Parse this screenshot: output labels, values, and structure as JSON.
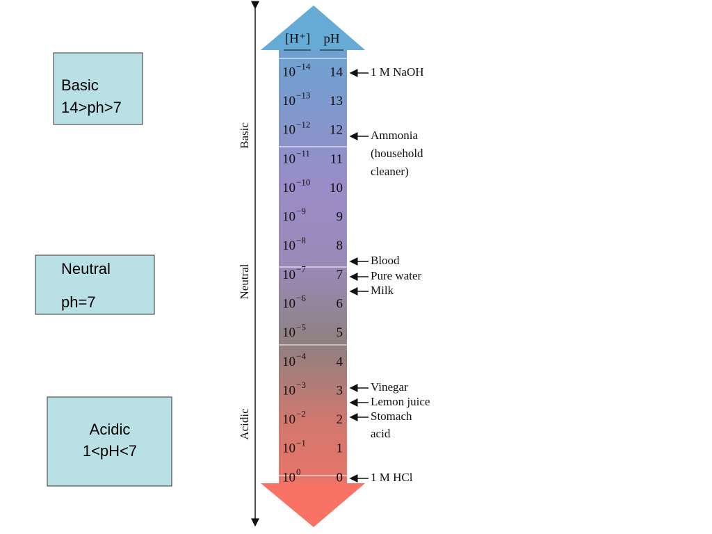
{
  "boxes": [
    {
      "lines": [
        "Basic",
        "14>ph>7"
      ]
    },
    {
      "lines": [
        "Neutral",
        "ph=7"
      ]
    },
    {
      "lines": [
        "Acidic",
        "1<pH<7"
      ]
    }
  ],
  "scale": {
    "header": {
      "concentration": "[H⁺]",
      "ph": "pH"
    },
    "rows": [
      {
        "base": "10",
        "exp": "−14",
        "ph": "14"
      },
      {
        "base": "10",
        "exp": "−13",
        "ph": "13"
      },
      {
        "base": "10",
        "exp": "−12",
        "ph": "12"
      },
      {
        "base": "10",
        "exp": "−11",
        "ph": "11"
      },
      {
        "base": "10",
        "exp": "−10",
        "ph": "10"
      },
      {
        "base": "10",
        "exp": "−9",
        "ph": "9"
      },
      {
        "base": "10",
        "exp": "−8",
        "ph": "8"
      },
      {
        "base": "10",
        "exp": "−7",
        "ph": "7"
      },
      {
        "base": "10",
        "exp": "−6",
        "ph": "6"
      },
      {
        "base": "10",
        "exp": "−5",
        "ph": "5"
      },
      {
        "base": "10",
        "exp": "−4",
        "ph": "4"
      },
      {
        "base": "10",
        "exp": "−3",
        "ph": "3"
      },
      {
        "base": "10",
        "exp": "−2",
        "ph": "2"
      },
      {
        "base": "10",
        "exp": "−1",
        "ph": "1"
      },
      {
        "base": "10",
        "exp": "0",
        "ph": "0"
      }
    ],
    "side_labels": [
      "Basic",
      "Neutral",
      "Acidic"
    ]
  },
  "annotations": [
    {
      "lines": [
        "1 M NaOH"
      ]
    },
    {
      "lines": [
        "Ammonia",
        "(household",
        " cleaner)"
      ]
    },
    {
      "lines": [
        "Blood"
      ]
    },
    {
      "lines": [
        "Pure water"
      ]
    },
    {
      "lines": [
        "Milk"
      ]
    },
    {
      "lines": [
        "Vinegar"
      ]
    },
    {
      "lines": [
        "Lemon juice"
      ]
    },
    {
      "lines": [
        "Stomach",
        "acid"
      ]
    },
    {
      "lines": [
        "1 M HCl"
      ]
    }
  ]
}
